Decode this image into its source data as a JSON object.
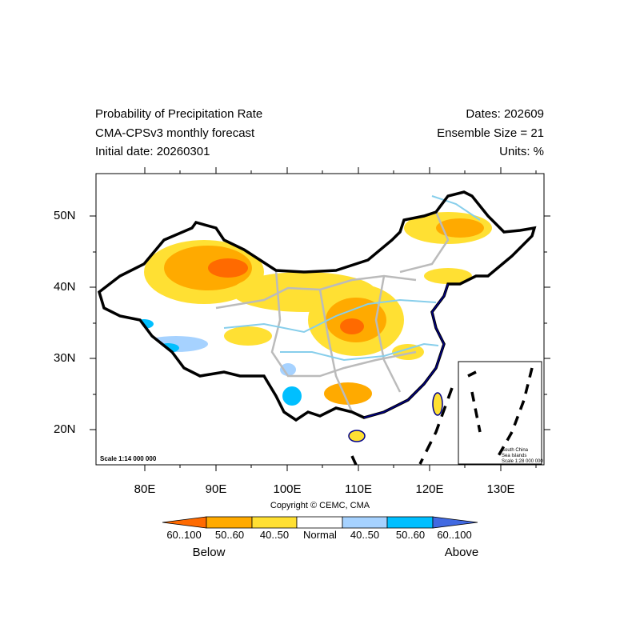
{
  "title": {
    "left": [
      "Probability of Precipitation Rate",
      "CMA-CPSv3 monthly forecast",
      "Initial date: 20260301"
    ],
    "right": [
      "Dates: 202609",
      "Ensemble Size = 21",
      "Units: %"
    ]
  },
  "map": {
    "lon_ticks": [
      "80E",
      "90E",
      "100E",
      "110E",
      "120E",
      "130E"
    ],
    "lat_ticks": [
      "50N",
      "40N",
      "30N",
      "20N"
    ],
    "scale_main": "Scale 1:14 000 000",
    "inset": {
      "line1": "South China",
      "line2": "Sea Islands",
      "line3": "Scale 1:28 000 000"
    }
  },
  "copyright": "Copyright © CEMC, CMA",
  "legend": {
    "labels": [
      "60..100",
      "50..60",
      "40..50",
      "Normal",
      "40..50",
      "50..60",
      "60..100"
    ],
    "colors": [
      "#ff6a00",
      "#ffaa00",
      "#ffe033",
      "#ffffff",
      "#a6d2ff",
      "#00bfff",
      "#4169e1"
    ],
    "below": "Below",
    "above": "Above"
  }
}
